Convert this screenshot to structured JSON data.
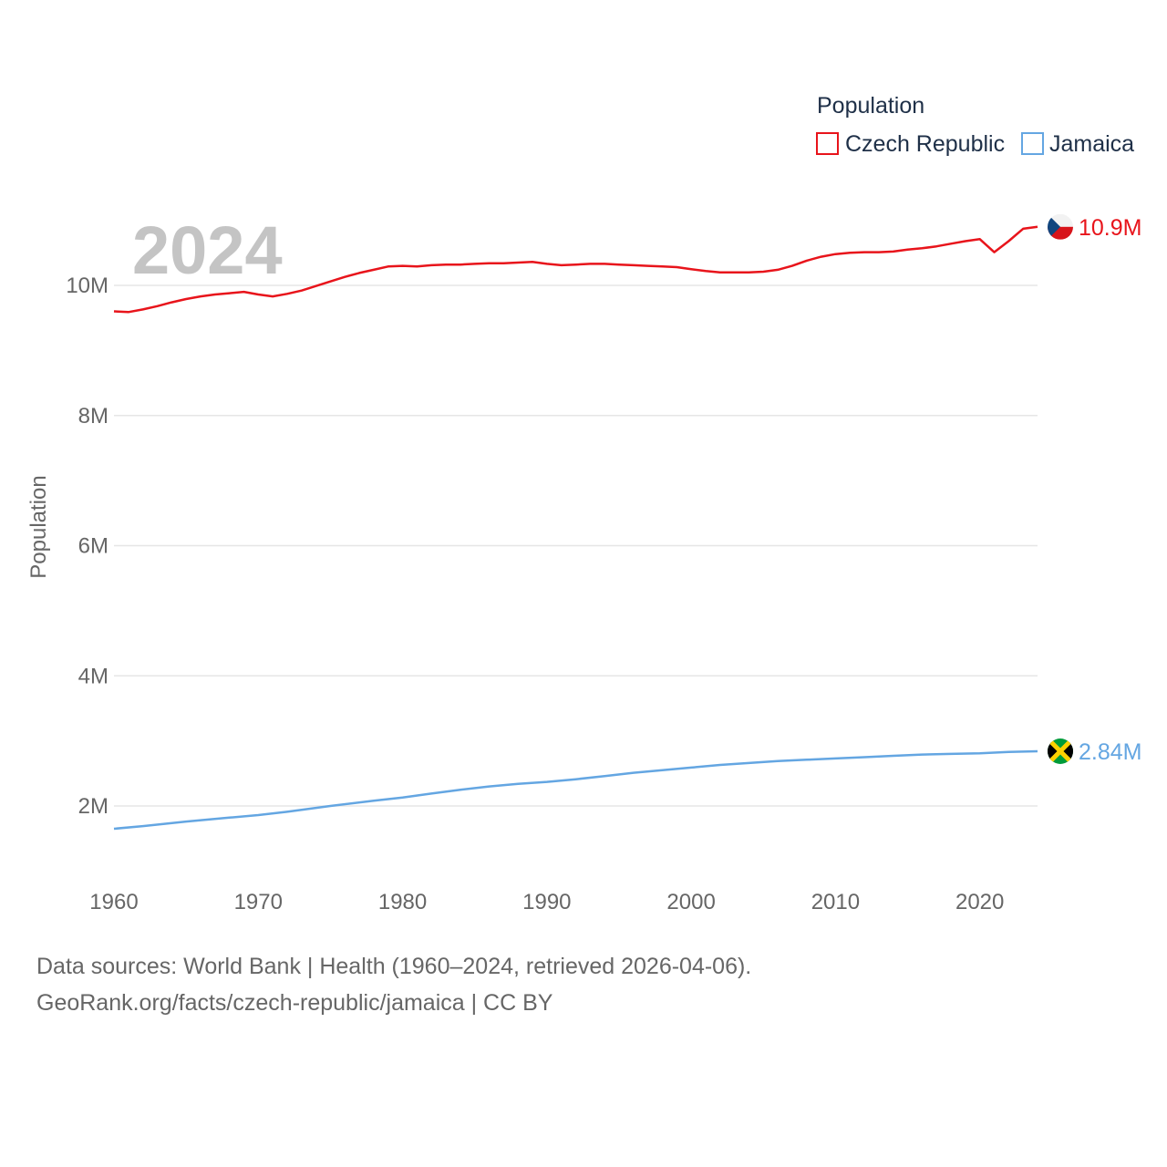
{
  "chart_data": {
    "type": "line",
    "ylabel": "Population",
    "xlabel": "",
    "ylim": [
      1000000,
      11500000
    ],
    "xlim": [
      1960,
      2024
    ],
    "y_ticks": [
      {
        "value": 2000000,
        "label": "2M"
      },
      {
        "value": 4000000,
        "label": "4M"
      },
      {
        "value": 6000000,
        "label": "6M"
      },
      {
        "value": 8000000,
        "label": "8M"
      },
      {
        "value": 10000000,
        "label": "10M"
      }
    ],
    "x_ticks": [
      {
        "value": 1960,
        "label": "1960"
      },
      {
        "value": 1970,
        "label": "1970"
      },
      {
        "value": 1980,
        "label": "1980"
      },
      {
        "value": 1990,
        "label": "1990"
      },
      {
        "value": 2000,
        "label": "2000"
      },
      {
        "value": 2010,
        "label": "2010"
      },
      {
        "value": 2020,
        "label": "2020"
      }
    ],
    "year_label": "2024",
    "legend": {
      "title": "Population",
      "position": "top-right"
    },
    "series": [
      {
        "name": "Czech Republic",
        "color": "#e8141b",
        "end_label": "10.9M",
        "flag_icon": "czech-flag-icon",
        "x": [
          1960,
          1961,
          1962,
          1963,
          1964,
          1965,
          1966,
          1967,
          1968,
          1969,
          1970,
          1971,
          1972,
          1973,
          1974,
          1975,
          1976,
          1977,
          1978,
          1979,
          1980,
          1981,
          1982,
          1983,
          1984,
          1985,
          1986,
          1987,
          1988,
          1989,
          1990,
          1991,
          1992,
          1993,
          1994,
          1995,
          1996,
          1997,
          1998,
          1999,
          2000,
          2001,
          2002,
          2003,
          2004,
          2005,
          2006,
          2007,
          2008,
          2009,
          2010,
          2011,
          2012,
          2013,
          2014,
          2015,
          2016,
          2017,
          2018,
          2019,
          2020,
          2021,
          2022,
          2023,
          2024
        ],
        "values": [
          9600000,
          9590000,
          9630000,
          9680000,
          9740000,
          9790000,
          9830000,
          9860000,
          9880000,
          9900000,
          9860000,
          9830000,
          9870000,
          9920000,
          9990000,
          10060000,
          10130000,
          10190000,
          10240000,
          10290000,
          10300000,
          10290000,
          10310000,
          10320000,
          10320000,
          10330000,
          10340000,
          10340000,
          10350000,
          10360000,
          10330000,
          10310000,
          10320000,
          10330000,
          10330000,
          10320000,
          10310000,
          10300000,
          10290000,
          10280000,
          10250000,
          10220000,
          10200000,
          10200000,
          10200000,
          10210000,
          10240000,
          10300000,
          10380000,
          10440000,
          10480000,
          10500000,
          10510000,
          10510000,
          10520000,
          10550000,
          10570000,
          10600000,
          10640000,
          10680000,
          10710000,
          10510000,
          10680000,
          10870000,
          10900000
        ]
      },
      {
        "name": "Jamaica",
        "color": "#64a6e2",
        "end_label": "2.84M",
        "flag_icon": "jamaica-flag-icon",
        "x": [
          1960,
          1962,
          1965,
          1968,
          1970,
          1972,
          1975,
          1978,
          1980,
          1982,
          1984,
          1986,
          1988,
          1990,
          1992,
          1994,
          1996,
          1998,
          2000,
          2002,
          2004,
          2006,
          2008,
          2010,
          2012,
          2014,
          2016,
          2018,
          2020,
          2022,
          2024
        ],
        "values": [
          1650000,
          1690000,
          1760000,
          1820000,
          1860000,
          1910000,
          2000000,
          2080000,
          2130000,
          2190000,
          2250000,
          2300000,
          2340000,
          2370000,
          2410000,
          2460000,
          2510000,
          2550000,
          2590000,
          2630000,
          2660000,
          2690000,
          2710000,
          2730000,
          2750000,
          2770000,
          2790000,
          2800000,
          2810000,
          2830000,
          2840000
        ]
      }
    ]
  },
  "footer": {
    "sources": "Data sources: World Bank | Health (1960–2024, retrieved 2026-04-06).",
    "credit": "GeoRank.org/facts/czech-republic/jamaica | CC BY"
  }
}
